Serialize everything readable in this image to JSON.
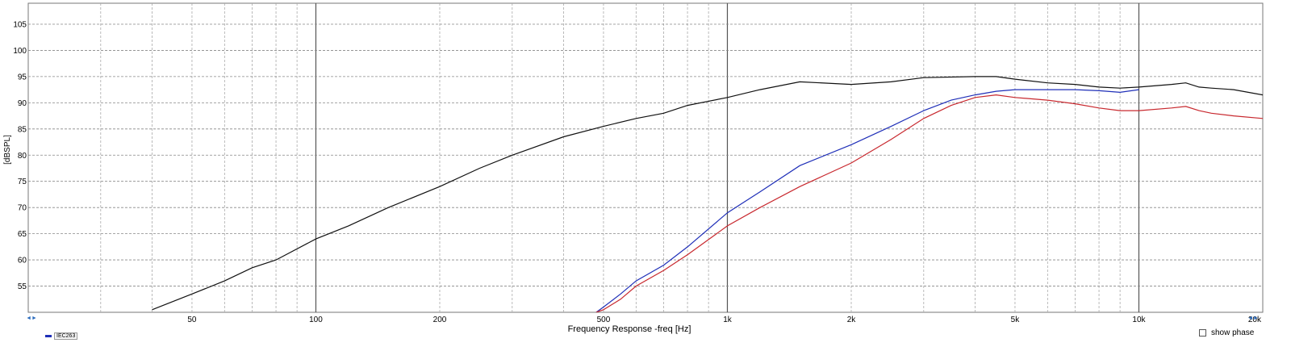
{
  "chart_data": {
    "type": "line",
    "title": "",
    "xlabel": "Frequency Response -freq [Hz]",
    "ylabel": "[dBSPL]",
    "xscale": "log",
    "xlim": [
      20,
      20000
    ],
    "ylim": [
      50,
      109
    ],
    "y_ticks": [
      55,
      60,
      65,
      70,
      75,
      80,
      85,
      90,
      95,
      100,
      105
    ],
    "x_tick_labels": [
      {
        "value": 50,
        "label": "50"
      },
      {
        "value": 100,
        "label": "100"
      },
      {
        "value": 200,
        "label": "200"
      },
      {
        "value": 500,
        "label": "500"
      },
      {
        "value": 1000,
        "label": "1k"
      },
      {
        "value": 2000,
        "label": "2k"
      },
      {
        "value": 5000,
        "label": "5k"
      },
      {
        "value": 10000,
        "label": "10k"
      },
      {
        "value": 20000,
        "label": "20k"
      }
    ],
    "grid": true,
    "series": [
      {
        "color": "#111111",
        "points": [
          [
            40,
            50.5
          ],
          [
            50,
            53.5
          ],
          [
            60,
            56
          ],
          [
            70,
            58.5
          ],
          [
            80,
            60
          ],
          [
            100,
            64
          ],
          [
            120,
            66.5
          ],
          [
            150,
            70
          ],
          [
            200,
            74
          ],
          [
            250,
            77.5
          ],
          [
            300,
            80
          ],
          [
            400,
            83.5
          ],
          [
            500,
            85.5
          ],
          [
            600,
            87
          ],
          [
            700,
            88
          ],
          [
            800,
            89.5
          ],
          [
            1000,
            91
          ],
          [
            1200,
            92.5
          ],
          [
            1500,
            94
          ],
          [
            2000,
            93.5
          ],
          [
            2500,
            94
          ],
          [
            3000,
            94.8
          ],
          [
            4000,
            95
          ],
          [
            4500,
            95
          ],
          [
            5000,
            94.5
          ],
          [
            6000,
            93.8
          ],
          [
            7000,
            93.5
          ],
          [
            8000,
            93
          ],
          [
            9000,
            92.8
          ],
          [
            10000,
            93
          ],
          [
            12000,
            93.5
          ],
          [
            13000,
            93.8
          ],
          [
            14000,
            93
          ],
          [
            15000,
            92.8
          ],
          [
            17000,
            92.5
          ],
          [
            20000,
            91.5
          ]
        ]
      },
      {
        "color": "#1f2fb8",
        "points": [
          [
            480,
            50
          ],
          [
            500,
            51
          ],
          [
            550,
            53.5
          ],
          [
            600,
            56
          ],
          [
            700,
            59
          ],
          [
            800,
            62.5
          ],
          [
            1000,
            69
          ],
          [
            1200,
            73
          ],
          [
            1500,
            78
          ],
          [
            2000,
            82
          ],
          [
            2500,
            85.5
          ],
          [
            3000,
            88.5
          ],
          [
            3500,
            90.5
          ],
          [
            4000,
            91.5
          ],
          [
            4500,
            92.2
          ],
          [
            5000,
            92.5
          ],
          [
            6000,
            92.5
          ],
          [
            7000,
            92.5
          ],
          [
            8000,
            92.3
          ],
          [
            9000,
            92
          ],
          [
            10000,
            92.5
          ]
        ]
      },
      {
        "color": "#c8282e",
        "points": [
          [
            480,
            50
          ],
          [
            500,
            50.5
          ],
          [
            550,
            52.5
          ],
          [
            600,
            55
          ],
          [
            700,
            58
          ],
          [
            800,
            61
          ],
          [
            1000,
            66.5
          ],
          [
            1200,
            70
          ],
          [
            1500,
            74
          ],
          [
            2000,
            78.5
          ],
          [
            2500,
            83
          ],
          [
            3000,
            87
          ],
          [
            3500,
            89.5
          ],
          [
            4000,
            91
          ],
          [
            4500,
            91.5
          ],
          [
            5000,
            91
          ],
          [
            6000,
            90.5
          ],
          [
            7000,
            89.8
          ],
          [
            8000,
            89
          ],
          [
            9000,
            88.5
          ],
          [
            10000,
            88.5
          ],
          [
            12000,
            89
          ],
          [
            13000,
            89.3
          ],
          [
            14000,
            88.5
          ],
          [
            15000,
            88
          ],
          [
            17000,
            87.5
          ],
          [
            20000,
            87
          ]
        ]
      }
    ],
    "legend_label": "IEC263",
    "show_phase_label": "show phase"
  }
}
